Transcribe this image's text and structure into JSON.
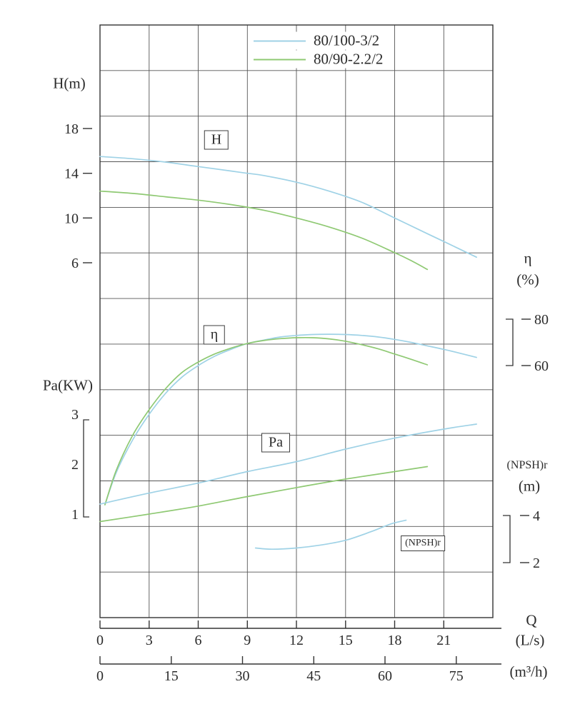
{
  "labels": {
    "h_axis": "H(m)",
    "pa_axis": "Pa(KW)",
    "eta_axis": "η",
    "eta_unit": "(%)",
    "npsh_axis": "(NPSH)r",
    "npsh_unit": "(m)",
    "q_axis": "Q",
    "q_unit_ls": "(L/s)",
    "q_unit_m3h": "(m³/h)",
    "curve_h": "H",
    "curve_eta": "η",
    "curve_pa": "Pa",
    "curve_npsh": "(NPSH)r"
  },
  "chart_data": {
    "type": "line",
    "legend": [
      {
        "label": "80/100-3/2",
        "color": "#9fd2e6"
      },
      {
        "label": "80/90-2.2/2",
        "color": "#8fc973"
      }
    ],
    "x_axis": {
      "label": "Q",
      "primary_unit": "L/s",
      "secondary_unit": "m³/h",
      "range_Ls": [
        0,
        24
      ],
      "ticks_Ls": [
        0,
        3,
        6,
        9,
        12,
        15,
        18,
        21
      ],
      "ticks_m3h": [
        0,
        15,
        30,
        45,
        60,
        75
      ]
    },
    "y_axes": {
      "H": {
        "label": "H(m)",
        "ticks": [
          18,
          14,
          10,
          6
        ]
      },
      "Pa": {
        "label": "Pa(KW)",
        "ticks": [
          3,
          2,
          1
        ]
      },
      "eta": {
        "label": "η(%)",
        "ticks": [
          80,
          60
        ]
      },
      "npsh": {
        "label": "(NPSH)r(m)",
        "ticks": [
          4,
          2
        ]
      }
    },
    "series": [
      {
        "key": "h-80-100",
        "name": "H 80/100-3/2",
        "model": "80/100-3/2",
        "axis": "H",
        "color": "#9fd2e6",
        "points": [
          [
            0,
            15.5
          ],
          [
            2,
            15.3
          ],
          [
            4,
            15.0
          ],
          [
            6,
            14.6
          ],
          [
            8,
            14.2
          ],
          [
            9,
            14.0
          ],
          [
            10,
            13.8
          ],
          [
            12,
            13.2
          ],
          [
            14,
            12.4
          ],
          [
            16,
            11.4
          ],
          [
            18,
            10.0
          ],
          [
            20,
            8.6
          ],
          [
            21,
            7.9
          ],
          [
            22,
            7.2
          ],
          [
            23,
            6.5
          ]
        ]
      },
      {
        "key": "h-80-90",
        "name": "H 80/90-2.2/2",
        "model": "80/90-2.2/2",
        "axis": "H",
        "color": "#8fc973",
        "points": [
          [
            0,
            12.4
          ],
          [
            2,
            12.2
          ],
          [
            4,
            11.9
          ],
          [
            6,
            11.6
          ],
          [
            8,
            11.2
          ],
          [
            10,
            10.7
          ],
          [
            12,
            10.0
          ],
          [
            14,
            9.2
          ],
          [
            16,
            8.2
          ],
          [
            18,
            6.9
          ],
          [
            19,
            6.2
          ],
          [
            20,
            5.4
          ]
        ]
      },
      {
        "key": "eta-80-100",
        "name": "η 80/100-3/2",
        "model": "80/100-3/2",
        "axis": "eta",
        "color": "#9fd2e6",
        "points": [
          [
            0.3,
            0
          ],
          [
            1,
            14
          ],
          [
            2,
            28
          ],
          [
            3,
            39
          ],
          [
            4,
            48
          ],
          [
            5,
            55
          ],
          [
            6,
            60
          ],
          [
            7,
            64
          ],
          [
            8,
            67
          ],
          [
            9,
            69.5
          ],
          [
            10,
            71
          ],
          [
            11,
            72.3
          ],
          [
            12,
            73
          ],
          [
            13,
            73.4
          ],
          [
            14,
            73.5
          ],
          [
            15,
            73.4
          ],
          [
            16,
            73
          ],
          [
            17,
            72.3
          ],
          [
            18,
            71.3
          ],
          [
            19,
            70
          ],
          [
            20,
            68.5
          ],
          [
            21,
            67
          ],
          [
            22,
            65.3
          ],
          [
            23,
            63.5
          ]
        ]
      },
      {
        "key": "eta-80-90",
        "name": "η 80/90-2.2/2",
        "model": "80/90-2.2/2",
        "axis": "eta",
        "color": "#8fc973",
        "points": [
          [
            0.3,
            0
          ],
          [
            1,
            15
          ],
          [
            2,
            30
          ],
          [
            3,
            41
          ],
          [
            4,
            50
          ],
          [
            5,
            57
          ],
          [
            6,
            61.5
          ],
          [
            7,
            65
          ],
          [
            8,
            67.5
          ],
          [
            9,
            69.5
          ],
          [
            10,
            70.8
          ],
          [
            11,
            71.6
          ],
          [
            12,
            72
          ],
          [
            13,
            72
          ],
          [
            14,
            71.5
          ],
          [
            15,
            70.5
          ],
          [
            16,
            69
          ],
          [
            17,
            67.2
          ],
          [
            18,
            65
          ],
          [
            19,
            62.7
          ],
          [
            20,
            60.3
          ]
        ]
      },
      {
        "key": "pa-80-100",
        "name": "Pa 80/100-3/2",
        "model": "80/100-3/2",
        "axis": "Pa",
        "color": "#9fd2e6",
        "points": [
          [
            0,
            1.2
          ],
          [
            3,
            1.42
          ],
          [
            6,
            1.62
          ],
          [
            9,
            1.85
          ],
          [
            12,
            2.05
          ],
          [
            15,
            2.3
          ],
          [
            18,
            2.52
          ],
          [
            21,
            2.7
          ],
          [
            23,
            2.8
          ]
        ]
      },
      {
        "key": "pa-80-90",
        "name": "Pa 80/90-2.2/2",
        "model": "80/90-2.2/2",
        "axis": "Pa",
        "color": "#8fc973",
        "points": [
          [
            0,
            0.85
          ],
          [
            3,
            1.0
          ],
          [
            6,
            1.16
          ],
          [
            9,
            1.35
          ],
          [
            12,
            1.53
          ],
          [
            15,
            1.7
          ],
          [
            18,
            1.85
          ],
          [
            20,
            1.95
          ]
        ]
      },
      {
        "key": "npshr",
        "name": "(NPSH)r",
        "model": "80/100-3/2",
        "axis": "npsh",
        "color": "#9fd2e6",
        "points": [
          [
            9.5,
            2.62
          ],
          [
            10.5,
            2.57
          ],
          [
            12,
            2.62
          ],
          [
            13.5,
            2.75
          ],
          [
            15,
            2.95
          ],
          [
            16.5,
            3.3
          ],
          [
            17.8,
            3.65
          ],
          [
            18.7,
            3.8
          ]
        ]
      }
    ]
  }
}
